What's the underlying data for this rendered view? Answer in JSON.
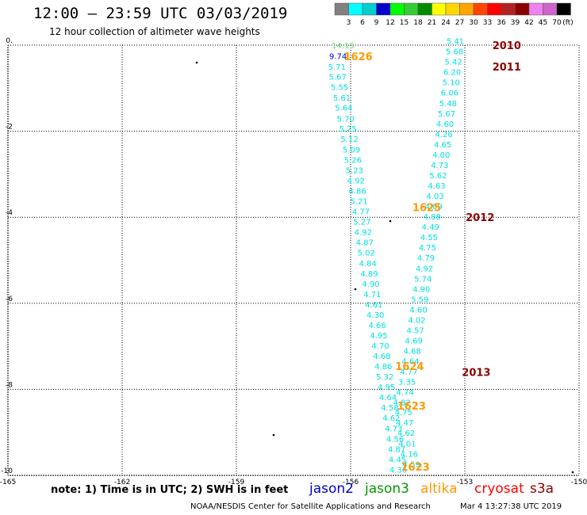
{
  "header": {
    "title": "12:00 – 23:59 UTC 03/03/2019",
    "subtitle": "12 hour collection of altimeter wave heights"
  },
  "colorbar": {
    "unit": "(ft)",
    "ticks": [
      "3",
      "6",
      "9",
      "12",
      "15",
      "18",
      "21",
      "24",
      "27",
      "30",
      "33",
      "36",
      "39",
      "42",
      "45",
      "70"
    ],
    "colors": [
      "#808080",
      "#00ffff",
      "#00ced1",
      "#0000cd",
      "#00ff00",
      "#32cd32",
      "#008b00",
      "#ffff00",
      "#ffd700",
      "#ffa500",
      "#ff4500",
      "#ff0000",
      "#b22222",
      "#8b0000",
      "#ee82ee",
      "#cc66cc",
      "#000000"
    ]
  },
  "footer": {
    "note": "note:  1) Time is in UTC;  2) SWH is in feet",
    "satellites": [
      {
        "name": "jason2",
        "color": "#0000cd"
      },
      {
        "name": "jason3",
        "color": "#009900"
      },
      {
        "name": "altika",
        "color": "#ff9900"
      },
      {
        "name": "cryosat",
        "color": "#ff0000"
      },
      {
        "name": "s3a",
        "color": "#8b0000"
      }
    ],
    "credit": "NOAA/NESDIS Center for Satellite Applications and Research",
    "timestamp": "Mar  4 13:27:38 UTC 2019"
  },
  "chart_data": {
    "type": "scatter",
    "title": "",
    "xlabel": "",
    "ylabel": "",
    "xlim": [
      -165,
      -150
    ],
    "ylim": [
      -10,
      0
    ],
    "grid": true,
    "x_ticks": [
      "-165",
      "-162",
      "-159",
      "-156",
      "-153",
      "-150"
    ],
    "x_tick_values": [
      -165,
      -162,
      -159,
      -156,
      -153,
      -150
    ],
    "y_ticks": [
      "0.",
      "-2",
      "-4",
      "-6",
      "-8",
      "-10"
    ],
    "y_tick_values": [
      0,
      -2,
      -4,
      -6,
      -8,
      -10
    ],
    "series": [
      {
        "name": "jason3",
        "color": "#00e0e0",
        "points": [
          {
            "x": -156.2,
            "y": 0.0,
            "label": "14.15",
            "color": "#66dd66"
          },
          {
            "x": -156.33,
            "y": -0.25,
            "label": "9.74",
            "color": "#0000cd"
          },
          {
            "x": -156.36,
            "y": -0.5,
            "label": "5.71"
          },
          {
            "x": -156.34,
            "y": -0.73,
            "label": "5.67"
          },
          {
            "x": -156.29,
            "y": -0.97,
            "label": "5.55"
          },
          {
            "x": -156.23,
            "y": -1.22,
            "label": "5.61"
          },
          {
            "x": -156.18,
            "y": -1.45,
            "label": "5.64"
          },
          {
            "x": -156.13,
            "y": -1.7,
            "label": "5.70"
          },
          {
            "x": -156.07,
            "y": -1.93,
            "label": "5.25"
          },
          {
            "x": -156.03,
            "y": -2.17,
            "label": "5.12"
          },
          {
            "x": -155.98,
            "y": -2.42,
            "label": "5.09"
          },
          {
            "x": -155.94,
            "y": -2.66,
            "label": "5.26"
          },
          {
            "x": -155.9,
            "y": -2.9,
            "label": "5.23"
          },
          {
            "x": -155.86,
            "y": -3.14,
            "label": "4.92"
          },
          {
            "x": -155.82,
            "y": -3.38,
            "label": "4.86"
          },
          {
            "x": -155.78,
            "y": -3.62,
            "label": "5.21"
          },
          {
            "x": -155.73,
            "y": -3.86,
            "label": "4.77"
          },
          {
            "x": -155.7,
            "y": -4.1,
            "label": "5.27"
          },
          {
            "x": -155.67,
            "y": -4.34,
            "label": "4.92"
          },
          {
            "x": -155.63,
            "y": -4.58,
            "label": "4.87"
          },
          {
            "x": -155.59,
            "y": -4.82,
            "label": "5.02"
          },
          {
            "x": -155.55,
            "y": -5.06,
            "label": "4.84"
          },
          {
            "x": -155.51,
            "y": -5.3,
            "label": "4.89"
          },
          {
            "x": -155.47,
            "y": -5.54,
            "label": "4.90"
          },
          {
            "x": -155.43,
            "y": -5.78,
            "label": "4.71"
          },
          {
            "x": -155.39,
            "y": -6.02,
            "label": "4.61"
          },
          {
            "x": -155.35,
            "y": -6.26,
            "label": "4.30"
          },
          {
            "x": -155.3,
            "y": -6.5,
            "label": "4.66"
          },
          {
            "x": -155.26,
            "y": -6.74,
            "label": "4.95"
          },
          {
            "x": -155.22,
            "y": -6.98,
            "label": "4.70"
          },
          {
            "x": -155.18,
            "y": -7.22,
            "label": "4.68"
          },
          {
            "x": -155.14,
            "y": -7.46,
            "label": "4.86"
          },
          {
            "x": -155.1,
            "y": -7.7,
            "label": "5.32"
          },
          {
            "x": -155.06,
            "y": -7.94,
            "label": "4.95"
          },
          {
            "x": -155.02,
            "y": -8.18,
            "label": "4.64"
          },
          {
            "x": -154.97,
            "y": -8.42,
            "label": "4.58"
          },
          {
            "x": -154.93,
            "y": -8.66,
            "label": "4.62"
          },
          {
            "x": -154.87,
            "y": -8.9,
            "label": "4.73"
          },
          {
            "x": -154.83,
            "y": -9.14,
            "label": "4.56"
          },
          {
            "x": -154.79,
            "y": -9.38,
            "label": "4.87"
          },
          {
            "x": -154.77,
            "y": -9.62,
            "label": "4.45"
          },
          {
            "x": -154.75,
            "y": -9.86,
            "label": "4.36"
          },
          {
            "x": -154.4,
            "y": -9.73,
            "label": "4.59"
          },
          {
            "x": -154.46,
            "y": -9.49,
            "label": "4.16"
          },
          {
            "x": -154.51,
            "y": -9.25,
            "label": "4.01"
          },
          {
            "x": -154.54,
            "y": -9.01,
            "label": "4.62"
          },
          {
            "x": -154.58,
            "y": -8.77,
            "label": "4.47"
          },
          {
            "x": -154.61,
            "y": -8.53,
            "label": "4.75"
          },
          {
            "x": -154.65,
            "y": -8.3,
            "label": "4.82"
          },
          {
            "x": -154.57,
            "y": -8.06,
            "label": "4.74"
          },
          {
            "x": -154.52,
            "y": -7.82,
            "label": "3.35"
          },
          {
            "x": -154.47,
            "y": -7.58,
            "label": "4.77"
          },
          {
            "x": -154.43,
            "y": -7.34,
            "label": "4.64"
          },
          {
            "x": -154.38,
            "y": -7.1,
            "label": "4.68"
          },
          {
            "x": -154.34,
            "y": -6.86,
            "label": "4.69"
          },
          {
            "x": -154.3,
            "y": -6.62,
            "label": "4.57"
          },
          {
            "x": -154.26,
            "y": -6.38,
            "label": "4.02"
          },
          {
            "x": -154.22,
            "y": -6.14,
            "label": "4.60"
          },
          {
            "x": -154.18,
            "y": -5.9,
            "label": "5.59"
          },
          {
            "x": -154.14,
            "y": -5.66,
            "label": "4.90"
          },
          {
            "x": -154.1,
            "y": -5.42,
            "label": "5.74"
          },
          {
            "x": -154.06,
            "y": -5.18,
            "label": "4.92"
          },
          {
            "x": -154.02,
            "y": -4.94,
            "label": "4.79"
          },
          {
            "x": -153.98,
            "y": -4.7,
            "label": "4.75"
          },
          {
            "x": -153.94,
            "y": -4.46,
            "label": "4.55"
          },
          {
            "x": -153.9,
            "y": -4.22,
            "label": "4.49"
          },
          {
            "x": -153.86,
            "y": -3.98,
            "label": "4.88"
          },
          {
            "x": -153.82,
            "y": -3.74,
            "label": "4.69"
          },
          {
            "x": -153.78,
            "y": -3.5,
            "label": "4.03"
          },
          {
            "x": -153.74,
            "y": -3.26,
            "label": "4.63"
          },
          {
            "x": -153.7,
            "y": -3.02,
            "label": "5.62"
          },
          {
            "x": -153.66,
            "y": -2.78,
            "label": "4.73"
          },
          {
            "x": -153.62,
            "y": -2.54,
            "label": "4.00"
          },
          {
            "x": -153.58,
            "y": -2.3,
            "label": "4.65"
          },
          {
            "x": -153.55,
            "y": -2.06,
            "label": "4.26"
          },
          {
            "x": -153.52,
            "y": -1.82,
            "label": "4.60"
          },
          {
            "x": -153.48,
            "y": -1.58,
            "label": "5.67"
          },
          {
            "x": -153.44,
            "y": -1.34,
            "label": "5.48"
          },
          {
            "x": -153.4,
            "y": -1.1,
            "label": "6.06"
          },
          {
            "x": -153.36,
            "y": -0.86,
            "label": "5.10"
          },
          {
            "x": -153.33,
            "y": -0.62,
            "label": "6.20"
          },
          {
            "x": -153.3,
            "y": -0.38,
            "label": "5.42"
          },
          {
            "x": -153.27,
            "y": -0.14,
            "label": "5.68"
          },
          {
            "x": -153.25,
            "y": 0.1,
            "label": "5.41"
          }
        ]
      }
    ],
    "annotations": [
      {
        "x": -155.8,
        "y": -0.26,
        "text": "1626",
        "color": "#ff9900"
      },
      {
        "x": -154.0,
        "y": -3.77,
        "text": "1625",
        "color": "#ff9900"
      },
      {
        "x": -154.45,
        "y": -7.46,
        "text": "1624",
        "color": "#ff9900"
      },
      {
        "x": -154.4,
        "y": -8.38,
        "text": "1623",
        "color": "#ff9900"
      },
      {
        "x": -154.3,
        "y": -9.8,
        "text": "1623",
        "color": "#ff9900"
      },
      {
        "x": -151.9,
        "y": 0.0,
        "text": "2010",
        "color": "#8b0000"
      },
      {
        "x": -151.9,
        "y": -0.5,
        "text": "2011",
        "color": "#8b0000"
      },
      {
        "x": -152.6,
        "y": -4.0,
        "text": "2012",
        "color": "#8b0000"
      },
      {
        "x": -152.7,
        "y": -7.6,
        "text": "2013",
        "color": "#8b0000"
      }
    ]
  }
}
